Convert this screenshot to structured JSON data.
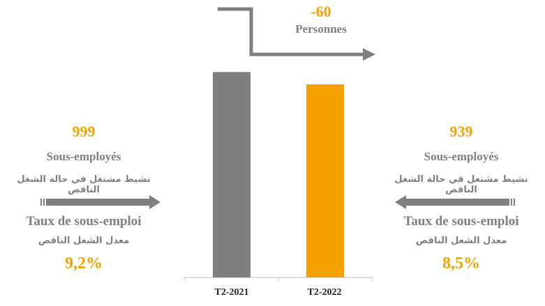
{
  "chart_data": {
    "type": "bar",
    "categories": [
      "T2-2021",
      "T2-2022"
    ],
    "values": [
      999,
      939
    ],
    "colors": [
      "#7f7f7f",
      "#f5a100"
    ],
    "ylim": [
      0,
      1000
    ],
    "title": "",
    "xlabel": "",
    "ylabel": ""
  },
  "left": {
    "count": "999",
    "label_fr": "Sous-employés",
    "label_ar": "نشيط مشتغل في حالة الشغل الناقص",
    "rate_label_fr": "Taux de sous-emploi",
    "rate_label_ar": "معدل الشغل الناقص",
    "rate": "9,2%"
  },
  "right": {
    "count": "939",
    "label_fr": "Sous-employés",
    "label_ar": "نشيط مشتغل في حالة الشغل الناقص",
    "rate_label_fr": "Taux de sous-emploi",
    "rate_label_ar": "معدل الشغل الناقص",
    "rate": "8,5%"
  },
  "change": {
    "value": "-60",
    "unit": "Personnes"
  },
  "colors": {
    "gray": "#7f7f7f",
    "orange": "#f5a100"
  }
}
